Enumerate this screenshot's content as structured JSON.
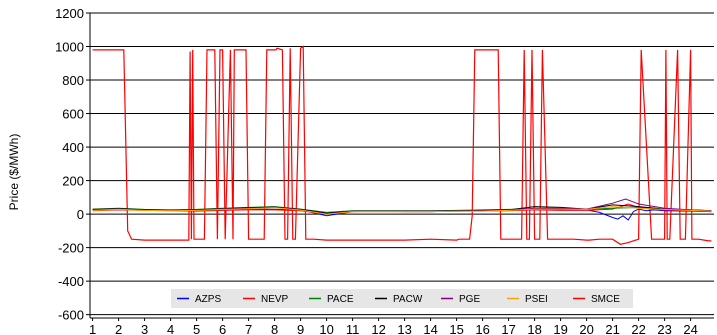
{
  "chart_data": {
    "type": "line",
    "title": "",
    "xlabel": "",
    "ylabel": "Price ($/MWh)",
    "ylim": [
      -620,
      1200
    ],
    "xlim": [
      0.9,
      24.9
    ],
    "yticks": [
      -600,
      -400,
      -200,
      0,
      200,
      400,
      600,
      800,
      1000,
      1200
    ],
    "xticks": [
      1,
      2,
      3,
      4,
      5,
      6,
      7,
      8,
      9,
      10,
      11,
      12,
      13,
      14,
      15,
      16,
      17,
      18,
      19,
      20,
      21,
      22,
      23,
      24
    ],
    "grid": "horizontal",
    "legend_position": "bottom-inside",
    "series": [
      {
        "name": "AZPS",
        "color": "#0000ff",
        "x": [
          1,
          2,
          3,
          4,
          5,
          6,
          7,
          8,
          9,
          10,
          11,
          12,
          13,
          14,
          15,
          16,
          17,
          18,
          19,
          20,
          20.5,
          21,
          21.2,
          21.4,
          21.6,
          21.8,
          22,
          22.3,
          22.6,
          23,
          24,
          24.8
        ],
        "y": [
          25,
          30,
          25,
          22,
          25,
          28,
          30,
          28,
          25,
          -10,
          15,
          18,
          15,
          15,
          18,
          20,
          22,
          25,
          25,
          25,
          10,
          -20,
          -30,
          -10,
          -35,
          15,
          30,
          20,
          25,
          20,
          18,
          15
        ]
      },
      {
        "name": "NEVP",
        "color": "#ff0000",
        "x": [
          1,
          2,
          3,
          4,
          5,
          6,
          7,
          8,
          9,
          10,
          11,
          12,
          13,
          14,
          15,
          16,
          17,
          18,
          19,
          20,
          21,
          21.3,
          21.6,
          22,
          22.5,
          23,
          24,
          24.8
        ],
        "y": [
          20,
          25,
          22,
          20,
          18,
          22,
          25,
          25,
          20,
          0,
          15,
          15,
          15,
          15,
          18,
          18,
          20,
          25,
          22,
          22,
          30,
          45,
          60,
          40,
          30,
          25,
          20,
          15
        ]
      },
      {
        "name": "PACE",
        "color": "#008000",
        "x": [
          1,
          2,
          3,
          4,
          5,
          6,
          7,
          8,
          9,
          10,
          11,
          12,
          13,
          14,
          15,
          16,
          17,
          18,
          19,
          20,
          21,
          22,
          23,
          24,
          24.8
        ],
        "y": [
          30,
          35,
          28,
          25,
          28,
          35,
          40,
          45,
          30,
          10,
          20,
          20,
          20,
          20,
          22,
          25,
          28,
          30,
          30,
          28,
          35,
          40,
          30,
          25,
          20
        ]
      },
      {
        "name": "PACW",
        "color": "#000000",
        "x": [
          1,
          2,
          3,
          4,
          5,
          6,
          7,
          8,
          9,
          10,
          11,
          12,
          13,
          14,
          15,
          16,
          17,
          18,
          19,
          20,
          21,
          22,
          23,
          24,
          24.8
        ],
        "y": [
          28,
          32,
          26,
          24,
          26,
          32,
          38,
          42,
          28,
          5,
          18,
          18,
          18,
          18,
          20,
          22,
          25,
          45,
          40,
          30,
          55,
          45,
          30,
          25,
          20
        ]
      },
      {
        "name": "PGE",
        "color": "#800080",
        "x": [
          1,
          2,
          3,
          4,
          5,
          6,
          7,
          8,
          9,
          10,
          11,
          12,
          13,
          14,
          15,
          16,
          17,
          18,
          19,
          20,
          21,
          21.5,
          22,
          23,
          24,
          24.8
        ],
        "y": [
          25,
          30,
          24,
          22,
          24,
          30,
          35,
          40,
          26,
          0,
          16,
          16,
          16,
          16,
          18,
          20,
          24,
          35,
          35,
          30,
          65,
          90,
          60,
          35,
          25,
          20
        ]
      },
      {
        "name": "PSEI",
        "color": "#ffa500",
        "x": [
          1,
          2,
          3,
          4,
          5,
          6,
          7,
          8,
          9,
          10,
          11,
          12,
          13,
          14,
          15,
          16,
          17,
          18,
          19,
          20,
          21,
          22,
          23,
          24,
          24.8
        ],
        "y": [
          22,
          28,
          22,
          20,
          22,
          28,
          32,
          38,
          24,
          0,
          15,
          15,
          15,
          15,
          17,
          18,
          22,
          30,
          30,
          28,
          45,
          35,
          28,
          22,
          18
        ]
      },
      {
        "name": "SMCE",
        "color": "#ff0000",
        "x": [
          1,
          1.1,
          2.2,
          2.35,
          2.5,
          3,
          4,
          4.7,
          4.75,
          4.8,
          4.85,
          4.9,
          5,
          5.2,
          5.3,
          5.4,
          5.7,
          5.8,
          5.9,
          6,
          6.1,
          6.3,
          6.4,
          6.45,
          6.9,
          7,
          7.05,
          7.5,
          7.6,
          7.7,
          8,
          8.05,
          8.1,
          8.3,
          8.4,
          8.5,
          8.6,
          8.7,
          8.8,
          9,
          9.1,
          9.2,
          9.5,
          10,
          11,
          12,
          13,
          14,
          15,
          15.1,
          15.5,
          15.6,
          15.7,
          16,
          16.5,
          16.6,
          16.7,
          17,
          17.2,
          17.5,
          17.6,
          17.7,
          17.8,
          17.9,
          18,
          18.2,
          18.3,
          18.5,
          18.7,
          18.8,
          19,
          19.5,
          20,
          20.1,
          20.5,
          20.8,
          21,
          21.3,
          21.6,
          22,
          22.1,
          22.5,
          22.6,
          22.7,
          23,
          23.05,
          23.1,
          23.2,
          23.5,
          23.6,
          23.8,
          24,
          24.05,
          24.1,
          24.3,
          24.7,
          24.8
        ],
        "y": [
          980,
          980,
          980,
          -100,
          -150,
          -155,
          -155,
          -155,
          970,
          -150,
          980,
          -150,
          -150,
          -150,
          -150,
          980,
          980,
          -150,
          980,
          980,
          -150,
          980,
          -150,
          980,
          980,
          -150,
          -150,
          -150,
          -150,
          980,
          980,
          980,
          990,
          980,
          -150,
          -150,
          990,
          -150,
          -150,
          990,
          1000,
          -150,
          -150,
          -155,
          -155,
          -155,
          -155,
          -150,
          -155,
          -150,
          -150,
          -10,
          980,
          980,
          980,
          980,
          -150,
          -150,
          -150,
          -150,
          980,
          -150,
          -150,
          980,
          -150,
          -150,
          980,
          -150,
          -150,
          -150,
          -150,
          -150,
          -155,
          -155,
          -150,
          -150,
          -150,
          -180,
          -170,
          -150,
          980,
          -150,
          -150,
          -150,
          -150,
          980,
          -150,
          -150,
          980,
          -150,
          -150,
          980,
          -150,
          -150,
          -150,
          -160,
          -160
        ]
      }
    ]
  }
}
